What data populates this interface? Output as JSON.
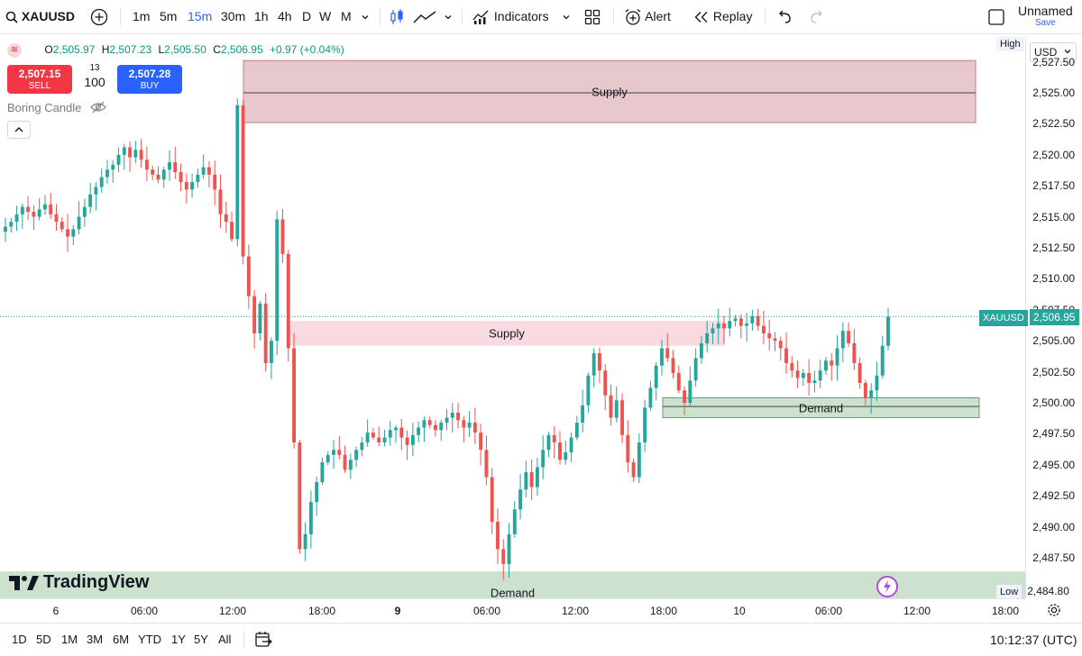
{
  "toolbar": {
    "symbol": "XAUUSD",
    "intervals": [
      "1m",
      "5m",
      "15m",
      "30m",
      "1h",
      "4h",
      "D",
      "W",
      "M"
    ],
    "active_interval": "15m",
    "indicators_label": "Indicators",
    "alert_label": "Alert",
    "replay_label": "Replay",
    "layout_name": "Unnamed",
    "save_label": "Save"
  },
  "legend": {
    "ohlc": {
      "o": "2,505.97",
      "h": "2,507.23",
      "l": "2,505.50",
      "c": "2,506.95",
      "chg": "+0.97 (+0.04%)"
    },
    "sell_price": "2,507.15",
    "sell_label": "SELL",
    "spread": "13",
    "quantity": "100",
    "buy_price": "2,507.28",
    "buy_label": "BUY",
    "indicator_name": "Boring Candle"
  },
  "price_axis": {
    "currency": "USD",
    "high_label": "High",
    "low_label": "Low",
    "low_value": "2,484.80",
    "ticks": [
      "2,527.50",
      "2,525.00",
      "2,522.50",
      "2,520.00",
      "2,517.50",
      "2,515.00",
      "2,512.50",
      "2,510.00",
      "2,507.50",
      "2,505.00",
      "2,502.50",
      "2,500.00",
      "2,497.50",
      "2,495.00",
      "2,492.50",
      "2,490.00",
      "2,487.50"
    ],
    "current_symbol": "XAUUSD",
    "current_price": "2,506.95"
  },
  "time_axis": {
    "ticks": [
      {
        "label": "6",
        "bold": false
      },
      {
        "label": "06:00",
        "bold": false
      },
      {
        "label": "12:00",
        "bold": false
      },
      {
        "label": "18:00",
        "bold": false
      },
      {
        "label": "9",
        "bold": true
      },
      {
        "label": "06:00",
        "bold": false
      },
      {
        "label": "12:00",
        "bold": false
      },
      {
        "label": "18:00",
        "bold": false
      },
      {
        "label": "10",
        "bold": false
      },
      {
        "label": "06:00",
        "bold": false
      },
      {
        "label": "12:00",
        "bold": false
      },
      {
        "label": "18:00",
        "bold": false
      }
    ]
  },
  "zones": [
    {
      "label": "Supply",
      "type": "supply",
      "top": 2527.6,
      "bottom": 2522.6,
      "mid": 2525.0
    },
    {
      "label": "Supply",
      "type": "supply",
      "top": 2506.6,
      "bottom": 2504.6
    },
    {
      "label": "Demand",
      "type": "demand",
      "top": 2500.4,
      "bottom": 2498.8,
      "mid": 2499.7
    },
    {
      "label": "Demand",
      "type": "demand",
      "top": 2486.4,
      "bottom": 2484.0
    }
  ],
  "bottom_bar": {
    "ranges": [
      "1D",
      "5D",
      "1M",
      "3M",
      "6M",
      "YTD",
      "1Y",
      "5Y",
      "All"
    ],
    "clock": "10:12:37 (UTC)"
  },
  "brand": "TradingView",
  "colors": {
    "up": "#26a69a",
    "down": "#ef5350",
    "accent": "#2962ff",
    "supply": "#c97c88",
    "demand": "#8fbf95"
  },
  "chart_data": {
    "type": "candlestick",
    "symbol": "XAUUSD",
    "interval": "15m",
    "ylim": [
      2484.0,
      2528.0
    ],
    "current_price": 2506.95,
    "x": [
      "6",
      "06:00",
      "12:00",
      "18:00",
      "9",
      "06:00",
      "12:00",
      "18:00",
      "10",
      "06:00",
      "12:00"
    ],
    "close_path": [
      2514.2,
      2514.6,
      2515.2,
      2515.8,
      2515.4,
      2515.0,
      2515.6,
      2516.0,
      2515.2,
      2514.6,
      2514.0,
      2513.4,
      2514.0,
      2515.0,
      2515.8,
      2516.8,
      2517.4,
      2518.2,
      2518.8,
      2519.2,
      2520.0,
      2520.6,
      2519.8,
      2520.4,
      2519.6,
      2518.8,
      2518.4,
      2518.0,
      2518.8,
      2519.4,
      2518.6,
      2517.8,
      2517.2,
      2517.8,
      2518.4,
      2519.0,
      2518.4,
      2517.2,
      2515.2,
      2514.6,
      2513.2,
      2524.0,
      2511.8,
      2508.6,
      2505.6,
      2508.0,
      2503.2,
      2505.0,
      2514.8,
      2512.0,
      2504.4,
      2496.8,
      2488.2,
      2489.4,
      2492.0,
      2493.6,
      2495.2,
      2495.8,
      2496.2,
      2495.8,
      2494.6,
      2495.4,
      2496.2,
      2496.8,
      2497.6,
      2497.2,
      2496.8,
      2497.2,
      2497.8,
      2498.0,
      2497.2,
      2496.6,
      2497.4,
      2498.0,
      2498.6,
      2498.2,
      2497.8,
      2498.4,
      2498.8,
      2499.2,
      2498.6,
      2498.0,
      2498.4,
      2497.6,
      2496.2,
      2494.0,
      2490.4,
      2488.2,
      2487.0,
      2489.4,
      2491.4,
      2493.0,
      2494.4,
      2493.2,
      2494.8,
      2496.2,
      2497.4,
      2496.8,
      2495.4,
      2496.0,
      2497.2,
      2498.4,
      2499.8,
      2502.2,
      2504.0,
      2502.6,
      2500.6,
      2498.8,
      2500.2,
      2497.4,
      2495.2,
      2494.0,
      2496.8,
      2499.6,
      2501.2,
      2503.0,
      2504.4,
      2503.6,
      2502.4,
      2501.0,
      2500.0,
      2501.8,
      2503.6,
      2504.8,
      2505.6,
      2506.0,
      2506.4,
      2506.0,
      2506.6,
      2506.8,
      2506.2,
      2506.4,
      2507.0,
      2506.2,
      2505.6,
      2505.2,
      2505.0,
      2504.4,
      2503.2,
      2502.6,
      2502.0,
      2502.4,
      2501.6,
      2501.8,
      2502.6,
      2503.4,
      2503.0,
      2504.4,
      2505.8,
      2504.8,
      2503.2,
      2501.6,
      2500.4,
      2501.0,
      2502.2,
      2504.6,
      2506.95
    ]
  }
}
